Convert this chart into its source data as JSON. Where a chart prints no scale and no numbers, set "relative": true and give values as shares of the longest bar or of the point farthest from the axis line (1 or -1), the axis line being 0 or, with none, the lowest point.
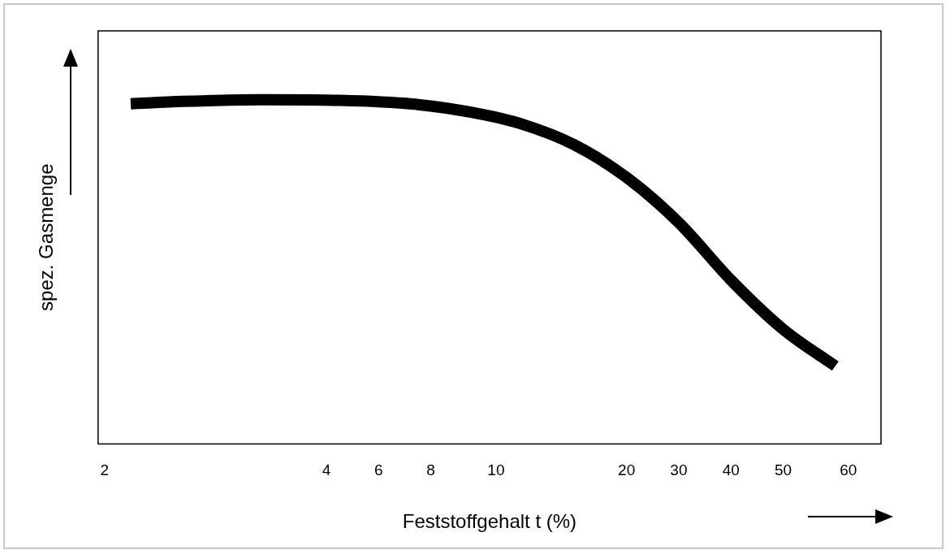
{
  "chart_data": {
    "type": "line",
    "xlabel": "Feststoffgehalt t (%)",
    "ylabel": "spez. Gasmenge",
    "relative": true,
    "grid": false,
    "legend": false,
    "marker": "none",
    "line_style": "solid",
    "categories": [
      "2",
      null,
      null,
      null,
      null,
      null,
      null,
      null,
      null,
      null,
      null,
      null,
      null,
      null,
      null,
      null,
      null,
      "4",
      null,
      null,
      null,
      "6",
      null,
      null,
      null,
      "8",
      null,
      null,
      null,
      null,
      "10",
      null,
      null,
      null,
      null,
      null,
      null,
      null,
      null,
      null,
      "20",
      null,
      null,
      null,
      "30",
      null,
      null,
      null,
      "40",
      null,
      null,
      null,
      "50",
      null,
      null,
      null,
      null,
      "60",
      null,
      null
    ],
    "series": [
      {
        "color": "#000000",
        "values": [
          null,
          null,
          0.988,
          null,
          null,
          null,
          0.995,
          null,
          null,
          null,
          null,
          null,
          1.0,
          null,
          null,
          null,
          null,
          null,
          0.998,
          null,
          null,
          null,
          null,
          null,
          0.986,
          null,
          null,
          null,
          0.964,
          null,
          null,
          null,
          0.929,
          null,
          null,
          null,
          0.869,
          null,
          null,
          null,
          0.774,
          null,
          null,
          null,
          0.643,
          null,
          null,
          null,
          0.476,
          null,
          null,
          null,
          0.333,
          null,
          null,
          null,
          0.226,
          null,
          null,
          null
        ]
      }
    ]
  }
}
